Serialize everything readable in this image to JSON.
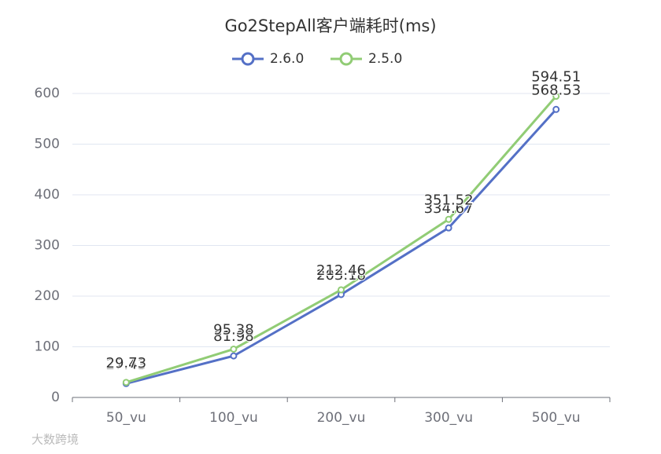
{
  "chart_data": {
    "type": "line",
    "title": "Go2StepAll客户端耗时(ms)",
    "categories": [
      "50_vu",
      "100_vu",
      "200_vu",
      "300_vu",
      "500_vu"
    ],
    "series": [
      {
        "name": "2.6.0",
        "color": "#5470c6",
        "values": [
          27.43,
          81.98,
          203.18,
          334.67,
          568.53
        ]
      },
      {
        "name": "2.5.0",
        "color": "#91cc75",
        "values": [
          29.73,
          95.38,
          212.46,
          351.52,
          594.51
        ]
      }
    ],
    "ylim": [
      0,
      600
    ],
    "yticks": [
      0,
      100,
      200,
      300,
      400,
      500,
      600
    ],
    "grid": true,
    "legend": "top",
    "watermark": "大数跨境"
  }
}
